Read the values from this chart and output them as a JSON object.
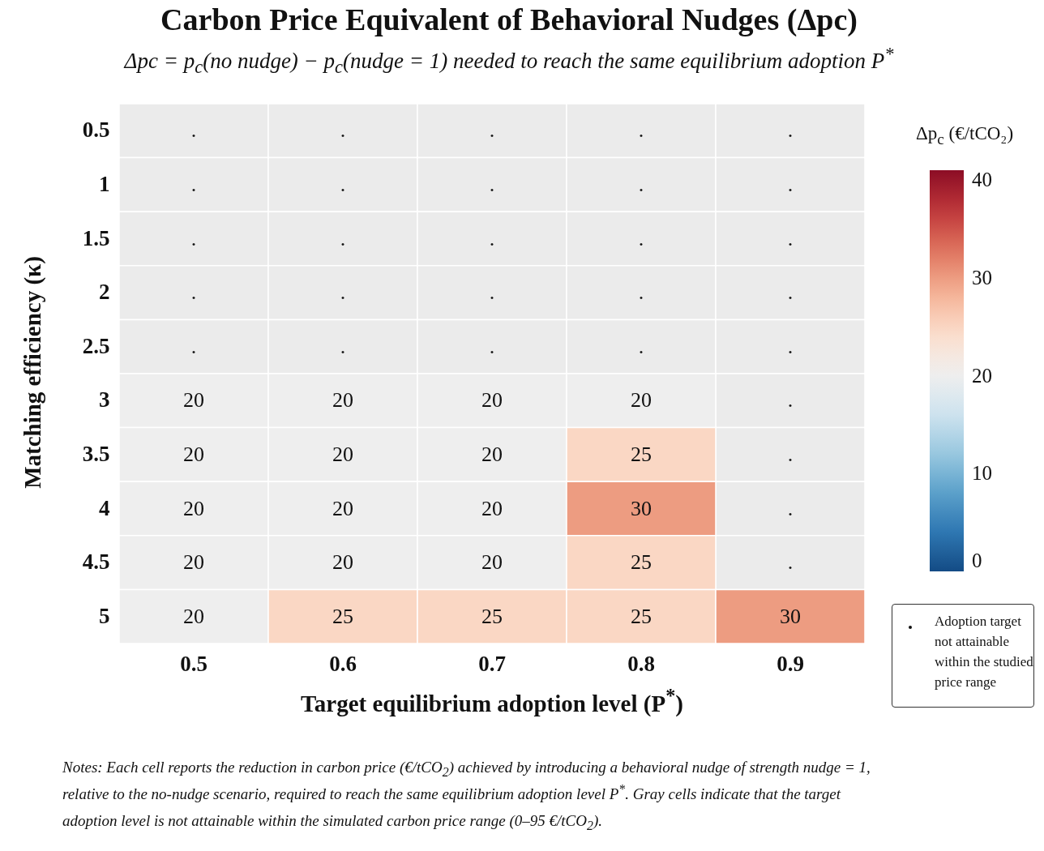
{
  "chart_data": {
    "type": "heatmap",
    "title": "Carbon Price Equivalent of Behavioral Nudges (Δpc)",
    "subtitle": "Δpc = p$_{c}$(no nudge) − p$_{c}$(nudge = 1) needed to reach the same equilibrium adoption P$^{*}$",
    "xlabel": "Target equilibrium adoption level (P$^{*}$)",
    "ylabel": "Matching efficiency (κ)",
    "clabel": "Δp$_{c}$ (€/tCO₂)",
    "categories": [
      "0.5",
      "0.6",
      "0.7",
      "0.8",
      "0.9"
    ],
    "y_categories": [
      "0.5",
      "1",
      "1.5",
      "2",
      "2.5",
      "3",
      "3.5",
      "4",
      "4.5",
      "5"
    ],
    "cells": [
      [
        null,
        null,
        null,
        null,
        null
      ],
      [
        null,
        null,
        null,
        null,
        null
      ],
      [
        null,
        null,
        null,
        null,
        null
      ],
      [
        null,
        null,
        null,
        null,
        null
      ],
      [
        null,
        null,
        null,
        null,
        null
      ],
      [
        20,
        20,
        20,
        20,
        null
      ],
      [
        20,
        20,
        20,
        25,
        null
      ],
      [
        20,
        20,
        20,
        30,
        null
      ],
      [
        20,
        20,
        20,
        25,
        null
      ],
      [
        20,
        25,
        25,
        25,
        30
      ]
    ],
    "cell_labels": [
      [
        ".",
        ".",
        ".",
        ".",
        "."
      ],
      [
        ".",
        ".",
        ".",
        ".",
        "."
      ],
      [
        ".",
        ".",
        ".",
        ".",
        "."
      ],
      [
        ".",
        ".",
        ".",
        ".",
        "."
      ],
      [
        ".",
        ".",
        ".",
        ".",
        "."
      ],
      [
        "20",
        "20",
        "20",
        "20",
        "."
      ],
      [
        "20",
        "20",
        "20",
        "25",
        "."
      ],
      [
        "20",
        "20",
        "20",
        "30",
        "."
      ],
      [
        "20",
        "20",
        "20",
        "25",
        "."
      ],
      [
        "20",
        "25",
        "25",
        "25",
        "30"
      ]
    ],
    "clim": [
      0,
      41
    ],
    "cticks": [
      0,
      10,
      20,
      30,
      40
    ],
    "annotations": [
      "Adoption target not attainable within the studied price range",
      "Notes: Each cell reports the reduction in carbon price (€/tCO$_{2}$) achieved by introducing a behavioral nudge of strength nudge = 1, relative to the no-nudge scenario, required to reach the same equilibrium adoption level P$^{*}$. Gray cells indicate that the target adoption level is not attainable within the simulated carbon price range (0–95 €/tCO$_{2}$)."
    ]
  }
}
